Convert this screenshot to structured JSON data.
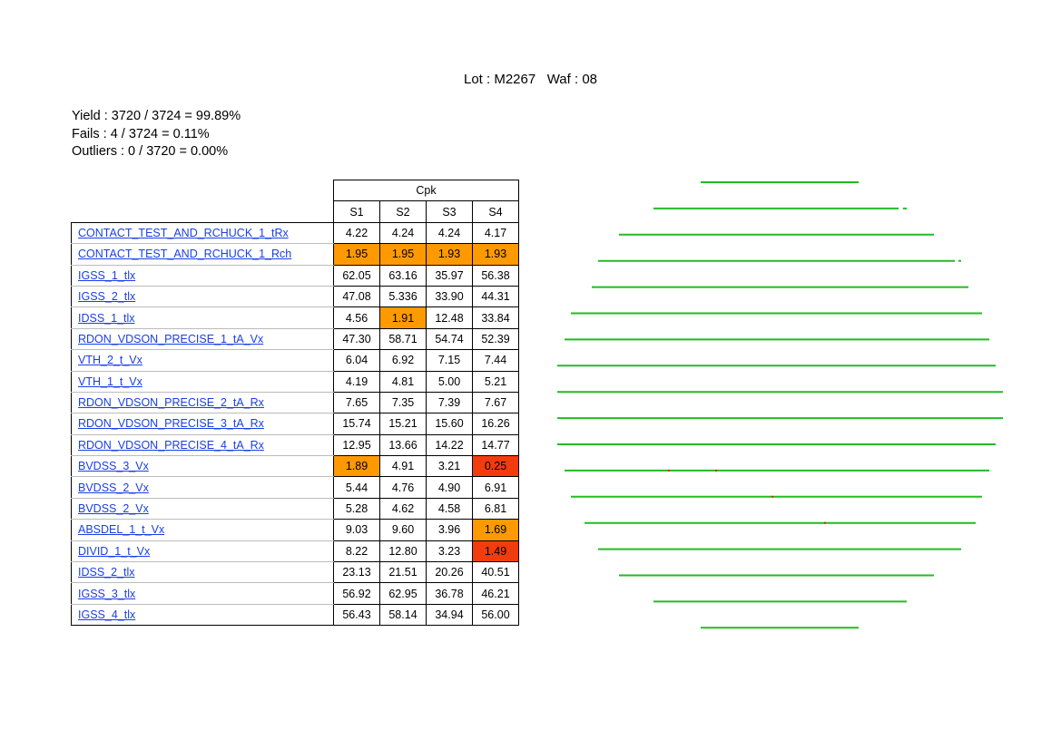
{
  "header": {
    "title": "Lot : M2267   Waf : 08"
  },
  "summary": {
    "yield": "Yield : 3720 / 3724 = 99.89%",
    "fails": "Fails : 4 / 3724 = 0.11%",
    "outliers": "Outliers : 0 / 3720 = 0.00%"
  },
  "table": {
    "group_header": "Cpk",
    "columns": [
      "S1",
      "S2",
      "S3",
      "S4"
    ],
    "rows": [
      {
        "name": "CONTACT_TEST_AND_RCHUCK_1_tRx",
        "values": [
          "4.22",
          "4.24",
          "4.24",
          "4.17"
        ],
        "highlight": [
          "",
          "",
          "",
          ""
        ]
      },
      {
        "name": "CONTACT_TEST_AND_RCHUCK_1_Rch",
        "values": [
          "1.95",
          "1.95",
          "1.93",
          "1.93"
        ],
        "highlight": [
          "orange",
          "orange",
          "orange",
          "orange"
        ]
      },
      {
        "name": "IGSS_1_tlx",
        "values": [
          "62.05",
          "63.16",
          "35.97",
          "56.38"
        ],
        "highlight": [
          "",
          "",
          "",
          ""
        ]
      },
      {
        "name": "IGSS_2_tlx",
        "values": [
          "47.08",
          "5.336",
          "33.90",
          "44.31"
        ],
        "highlight": [
          "",
          "",
          "",
          ""
        ]
      },
      {
        "name": "IDSS_1_tlx",
        "values": [
          "4.56",
          "1.91",
          "12.48",
          "33.84"
        ],
        "highlight": [
          "",
          "orange",
          "",
          ""
        ]
      },
      {
        "name": "RDON_VDSON_PRECISE_1_tA_Vx",
        "values": [
          "47.30",
          "58.71",
          "54.74",
          "52.39"
        ],
        "highlight": [
          "",
          "",
          "",
          ""
        ]
      },
      {
        "name": "VTH_2_t_Vx",
        "values": [
          "6.04",
          "6.92",
          "7.15",
          "7.44"
        ],
        "highlight": [
          "",
          "",
          "",
          ""
        ]
      },
      {
        "name": "VTH_1_t_Vx",
        "values": [
          "4.19",
          "4.81",
          "5.00",
          "5.21"
        ],
        "highlight": [
          "",
          "",
          "",
          ""
        ]
      },
      {
        "name": "RDON_VDSON_PRECISE_2_tA_Rx",
        "values": [
          "7.65",
          "7.35",
          "7.39",
          "7.67"
        ],
        "highlight": [
          "",
          "",
          "",
          ""
        ]
      },
      {
        "name": "RDON_VDSON_PRECISE_3_tA_Rx",
        "values": [
          "15.74",
          "15.21",
          "15.60",
          "16.26"
        ],
        "highlight": [
          "",
          "",
          "",
          ""
        ]
      },
      {
        "name": "RDON_VDSON_PRECISE_4_tA_Rx",
        "values": [
          "12.95",
          "13.66",
          "14.22",
          "14.77"
        ],
        "highlight": [
          "",
          "",
          "",
          ""
        ]
      },
      {
        "name": "BVDSS_3_Vx",
        "values": [
          "1.89",
          "4.91",
          "3.21",
          "0.25"
        ],
        "highlight": [
          "orange",
          "",
          "",
          "red"
        ]
      },
      {
        "name": "BVDSS_2_Vx",
        "values": [
          "5.44",
          "4.76",
          "4.90",
          "6.91"
        ],
        "highlight": [
          "",
          "",
          "",
          ""
        ]
      },
      {
        "name": "BVDSS_2_Vx",
        "values": [
          "5.28",
          "4.62",
          "4.58",
          "6.81"
        ],
        "highlight": [
          "",
          "",
          "",
          ""
        ]
      },
      {
        "name": "ABSDEL_1_t_Vx",
        "values": [
          "9.03",
          "9.60",
          "3.96",
          "1.69"
        ],
        "highlight": [
          "",
          "",
          "",
          "orange"
        ]
      },
      {
        "name": "DIVID_1_t_Vx",
        "values": [
          "8.22",
          "12.80",
          "3.23",
          "1.49"
        ],
        "highlight": [
          "",
          "",
          "",
          "red"
        ]
      },
      {
        "name": "IDSS_2_tlx",
        "values": [
          "23.13",
          "21.51",
          "20.26",
          "40.51"
        ],
        "highlight": [
          "",
          "",
          "",
          ""
        ]
      },
      {
        "name": "IGSS_3_tlx",
        "values": [
          "56.92",
          "62.95",
          "36.78",
          "46.21"
        ],
        "highlight": [
          "",
          "",
          "",
          ""
        ]
      },
      {
        "name": "IGSS_4_tlx",
        "values": [
          "56.43",
          "58.14",
          "34.94",
          "56.00"
        ],
        "highlight": [
          "",
          "",
          "",
          ""
        ]
      }
    ]
  },
  "colors": {
    "pass": "#22bb22",
    "fail": "#dd2200",
    "orange": "#ff9900",
    "red": "#f23c0e",
    "link": "#1a3ee6"
  },
  "wafer_map": {
    "rows": [
      {
        "x_start": 772,
        "x_end": 946,
        "fails": []
      },
      {
        "x_start": 720,
        "x_end": 990,
        "fails": [],
        "extra": [
          995,
          999
        ]
      },
      {
        "x_start": 682,
        "x_end": 1029,
        "fails": []
      },
      {
        "x_start": 659,
        "x_end": 1052,
        "fails": [],
        "extra": [
          1056,
          1059
        ]
      },
      {
        "x_start": 652,
        "x_end": 1067,
        "fails": []
      },
      {
        "x_start": 629,
        "x_end": 1082,
        "fails": []
      },
      {
        "x_start": 622,
        "x_end": 1090,
        "fails": []
      },
      {
        "x_start": 614,
        "x_end": 1097,
        "fails": []
      },
      {
        "x_start": 614,
        "x_end": 1105,
        "fails": []
      },
      {
        "x_start": 614,
        "x_end": 1105,
        "fails": []
      },
      {
        "x_start": 614,
        "x_end": 1097,
        "fails": []
      },
      {
        "x_start": 622,
        "x_end": 1090,
        "fails": [
          737,
          789
        ]
      },
      {
        "x_start": 629,
        "x_end": 1082,
        "fails": [
          851
        ]
      },
      {
        "x_start": 644,
        "x_end": 1075,
        "fails": [
          909
        ]
      },
      {
        "x_start": 659,
        "x_end": 1059,
        "fails": []
      },
      {
        "x_start": 682,
        "x_end": 1029,
        "fails": []
      },
      {
        "x_start": 720,
        "x_end": 999,
        "fails": []
      },
      {
        "x_start": 772,
        "x_end": 946,
        "fails": []
      }
    ]
  }
}
